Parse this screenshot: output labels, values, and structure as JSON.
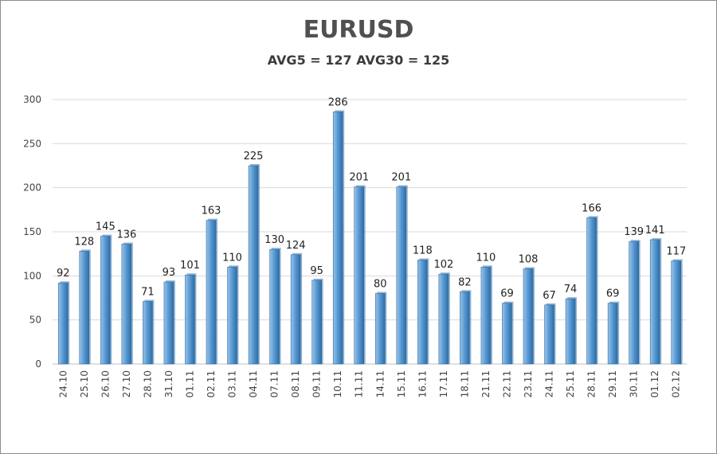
{
  "header": {
    "title": "EURUSD",
    "subtitle": "AVG5 = 127 AVG30 = 125"
  },
  "chart_data": {
    "type": "bar",
    "title": "EURUSD",
    "subtitle": "AVG5 = 127 AVG30 = 125",
    "categories": [
      "24.10",
      "25.10",
      "26.10",
      "27.10",
      "28.10",
      "31.10",
      "01.11",
      "02.11",
      "03.11",
      "04.11",
      "07.11",
      "08.11",
      "09.11",
      "10.11",
      "11.11",
      "14.11",
      "15.11",
      "16.11",
      "17.11",
      "18.11",
      "21.11",
      "22.11",
      "23.11",
      "24.11",
      "25.11",
      "28.11",
      "29.11",
      "30.11",
      "01.12",
      "02.12"
    ],
    "values": [
      92,
      128,
      145,
      136,
      71,
      93,
      101,
      163,
      110,
      225,
      130,
      124,
      95,
      286,
      201,
      80,
      201,
      118,
      102,
      82,
      110,
      69,
      108,
      67,
      74,
      166,
      69,
      139,
      141,
      117
    ],
    "ylim": [
      0,
      300
    ],
    "yticks": [
      0,
      50,
      100,
      150,
      200,
      250,
      300
    ],
    "grid": true,
    "legend": "none",
    "colors": {
      "bar": "#5b9bd5",
      "bar_light": "#9cc3e6",
      "bar_dark": "#2e6da4",
      "grid": "#d9d9d9",
      "axis": "#bfbfbf"
    }
  }
}
